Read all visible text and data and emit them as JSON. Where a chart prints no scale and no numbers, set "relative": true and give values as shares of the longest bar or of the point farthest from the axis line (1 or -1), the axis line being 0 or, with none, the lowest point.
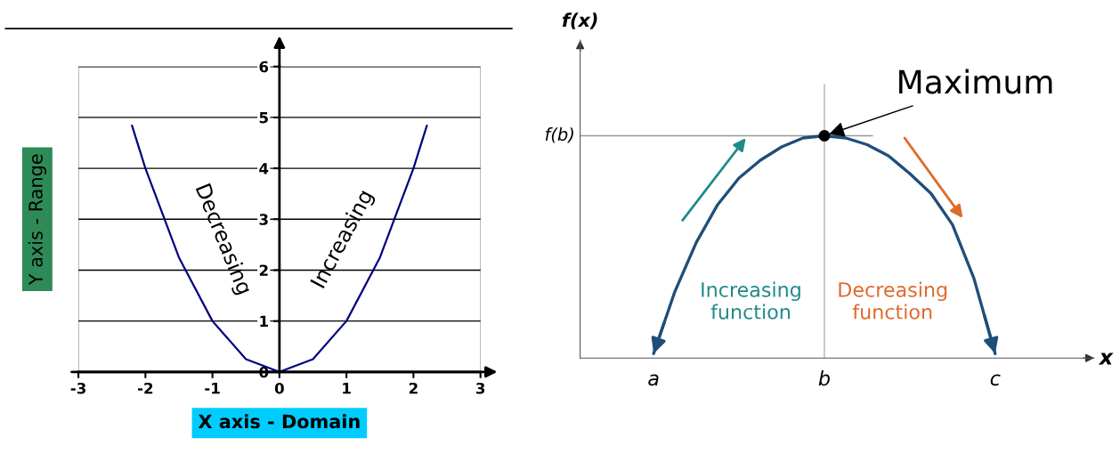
{
  "chart_data": [
    {
      "type": "line",
      "xlabel": "X axis - Domain",
      "ylabel": "Y axis - Range",
      "xlim": [
        -3,
        3
      ],
      "ylim": [
        0,
        6
      ],
      "xticks": [
        -3,
        -2,
        -1,
        0,
        1,
        2,
        3
      ],
      "yticks": [
        0,
        1,
        2,
        3,
        4,
        5,
        6
      ],
      "grid": "y",
      "series": [
        {
          "color": "#000080",
          "x": [
            -2.2,
            -2,
            -1.5,
            -1,
            -0.5,
            0,
            0.5,
            1,
            1.5,
            2,
            2.2
          ],
          "values": [
            4.84,
            4,
            2.25,
            1,
            0.25,
            0,
            0.25,
            1,
            2.25,
            4,
            4.84
          ]
        }
      ],
      "annotations": [
        "Decreasing",
        "Increasing"
      ]
    },
    {
      "type": "line",
      "relative": true,
      "xlabel": "x",
      "ylabel": "f(x)",
      "categories": [
        "a",
        null,
        null,
        null,
        null,
        null,
        null,
        null,
        "b",
        null,
        null,
        null,
        null,
        null,
        null,
        null,
        "c"
      ],
      "series": [
        {
          "color": "#1f4e79",
          "values": [
            0.02,
            0.3,
            0.52,
            0.69,
            0.81,
            0.89,
            0.95,
            0.99,
            1,
            0.99,
            0.96,
            0.91,
            0.83,
            0.74,
            0.6,
            0.36,
            0.02
          ]
        },
        {
          "type": "scatter",
          "color": "#000000",
          "marker": "circle",
          "x": [
            "b"
          ],
          "values": [
            1
          ]
        }
      ],
      "ref_lines": [
        {
          "axis": "x",
          "value": "b",
          "color": "#aaaaaa"
        },
        {
          "axis": "y",
          "value": 1,
          "label": "f(b)",
          "color": "#999999"
        }
      ],
      "annotations": [
        {
          "text": "Maximum",
          "x": "b",
          "y": 1
        },
        "Increasing\nfunction",
        "Decreasing\nfunction"
      ]
    }
  ]
}
